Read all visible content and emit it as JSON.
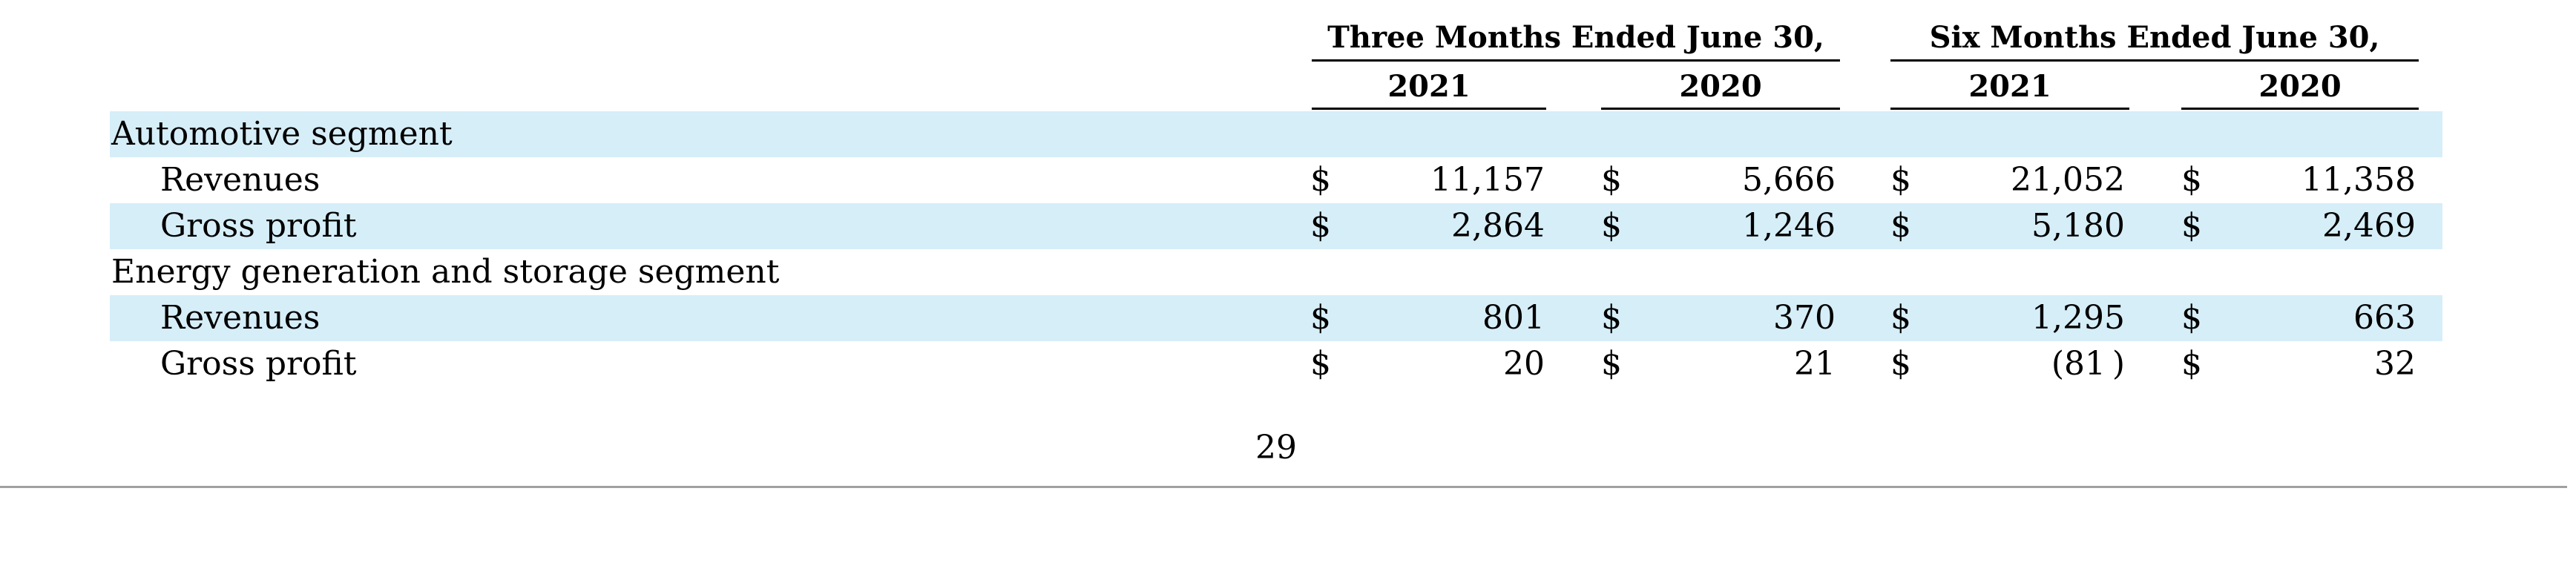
{
  "header": {
    "group1": "Three Months Ended June 30,",
    "group2": "Six Months Ended June 30,",
    "years": [
      "2021",
      "2020",
      "2021",
      "2020"
    ]
  },
  "rows": [
    {
      "label": "Automotive segment",
      "values": [
        "",
        "",
        "",
        ""
      ],
      "shaded": true
    },
    {
      "label": "Revenues",
      "values": [
        "11,157",
        "5,666",
        "21,052",
        "11,358"
      ],
      "shaded": false
    },
    {
      "label": "Gross profit",
      "values": [
        "2,864",
        "1,246",
        "5,180",
        "2,469"
      ],
      "shaded": true
    },
    {
      "label": "Energy generation and storage segment",
      "values": [
        "",
        "",
        "",
        ""
      ],
      "shaded": false
    },
    {
      "label": "Revenues",
      "values": [
        "801",
        "370",
        "1,295",
        "663"
      ],
      "shaded": true
    },
    {
      "label": "Gross profit",
      "values": [
        "20",
        "21",
        "(81 )",
        "32"
      ],
      "shaded": false
    }
  ],
  "currency_symbol": "$",
  "page_number": "29"
}
